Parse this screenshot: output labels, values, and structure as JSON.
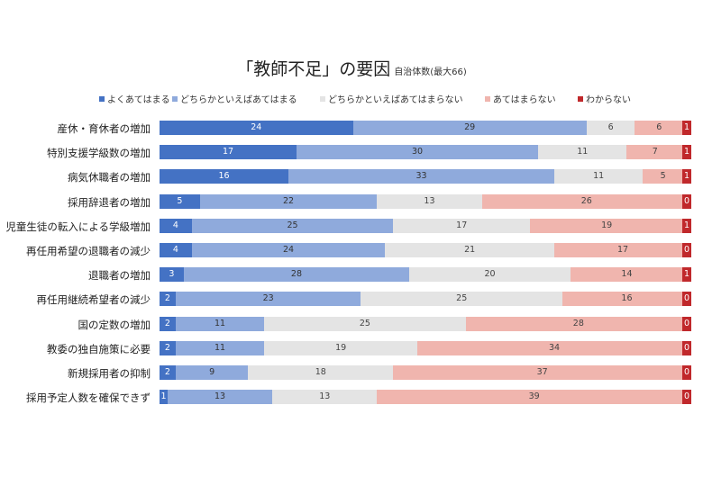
{
  "title": "「教師不足」の要因",
  "subtitle": "自治体数(最大66)",
  "chart_data": {
    "type": "bar",
    "orientation": "horizontal",
    "stacked": true,
    "title": "「教師不足」の要因",
    "subtitle": "自治体数(最大66)",
    "xlim": [
      0,
      66
    ],
    "legend_position": "top",
    "categories": [
      "産休・育休者の増加",
      "特別支援学級数の増加",
      "病気休職者の増加",
      "採用辞退者の増加",
      "児童生徒の転入による学級増加",
      "再任用希望の退職者の減少",
      "退職者の増加",
      "再任用継続希望者の減少",
      "国の定数の増加",
      "教委の独自施策に必要",
      "新規採用者の抑制",
      "採用予定人数を確保できず"
    ],
    "series": [
      {
        "name": "よくあてはまる",
        "color": "#4472c4",
        "values": [
          24,
          17,
          16,
          5,
          4,
          4,
          3,
          2,
          2,
          2,
          2,
          1
        ]
      },
      {
        "name": "どちらかといえばあてはまる",
        "color": "#8faadc",
        "values": [
          29,
          30,
          33,
          22,
          25,
          24,
          28,
          23,
          11,
          11,
          9,
          13
        ]
      },
      {
        "name": "どちらかといえばあてはまらない",
        "color": "#e4e4e4",
        "values": [
          6,
          11,
          11,
          13,
          17,
          21,
          20,
          25,
          25,
          19,
          18,
          13
        ]
      },
      {
        "name": "あてはまらない",
        "color": "#f0b5ae",
        "values": [
          6,
          7,
          5,
          26,
          19,
          17,
          14,
          16,
          28,
          34,
          37,
          39
        ]
      },
      {
        "name": "わからない",
        "color": "#c0282b",
        "values": [
          1,
          1,
          1,
          0,
          1,
          0,
          1,
          0,
          0,
          0,
          0,
          0
        ]
      }
    ]
  }
}
